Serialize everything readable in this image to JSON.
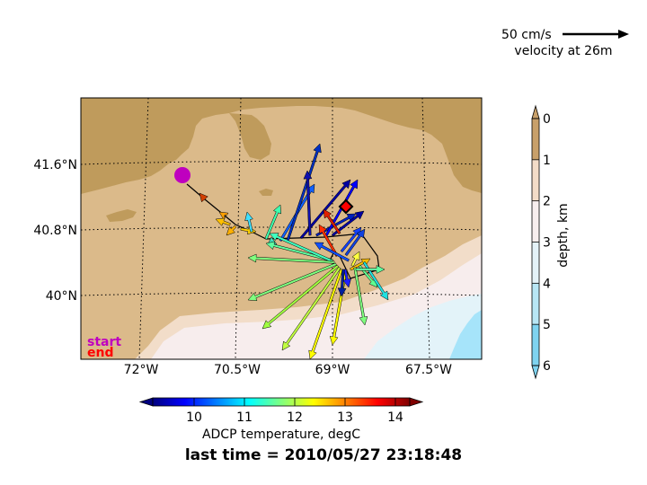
{
  "scale_arrow": {
    "label": "50 cm/s",
    "caption": "velocity at 26m"
  },
  "lat_ticks": [
    {
      "label": "41.6°N",
      "lat": 41.6
    },
    {
      "label": "40.8°N",
      "lat": 40.8
    },
    {
      "label": "40°N",
      "lat": 40.0
    }
  ],
  "lon_ticks": [
    {
      "label": "72°W",
      "lon": -72.0
    },
    {
      "label": "70.5°W",
      "lon": -70.5
    },
    {
      "label": "69°W",
      "lon": -69.0
    },
    {
      "label": "67.5°W",
      "lon": -67.5
    }
  ],
  "legend": {
    "start": "start",
    "end": "end",
    "start_color": "#bf00bf",
    "end_color": "#ff0000"
  },
  "depth_colorbar": {
    "label": "depth, km",
    "ticks": [
      "0",
      "1",
      "2",
      "3",
      "4",
      "5",
      "6"
    ],
    "colors": [
      "#c8a06a",
      "#f3dcc8",
      "#f7eeee",
      "#e4f2f8",
      "#b8e6f5",
      "#7fd3f0"
    ]
  },
  "temp_colorbar": {
    "label": "ADCP temperature, degC",
    "ticks": [
      "10",
      "11",
      "12",
      "13",
      "14"
    ]
  },
  "timestamp": "last time = 2010/05/27 23:18:48",
  "colors": {
    "land": "#bf9b5c",
    "shelf": "#dbba8a",
    "slope": "#f2ddc9",
    "deep": "#f7eded",
    "deepest": "#a6e4fa"
  }
}
